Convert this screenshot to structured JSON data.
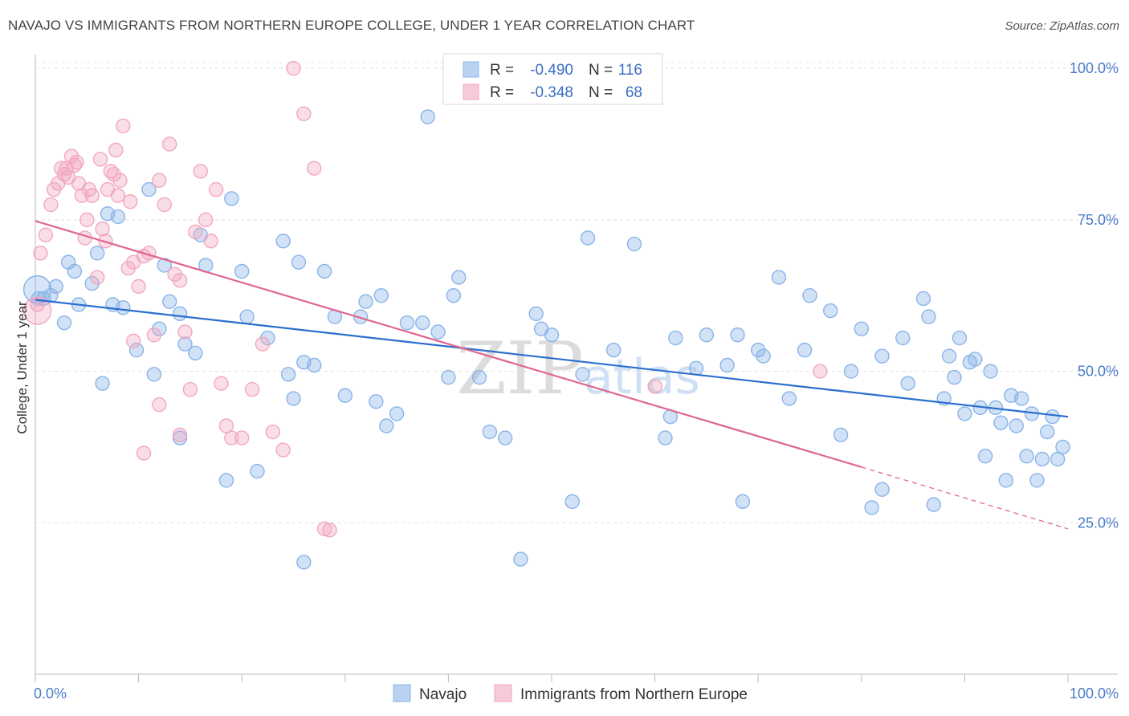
{
  "title": "NAVAJO VS IMMIGRANTS FROM NORTHERN EUROPE COLLEGE, UNDER 1 YEAR CORRELATION CHART",
  "source": "Source: ZipAtlas.com",
  "watermark": "ZIPatlas",
  "chart_data": {
    "type": "scatter",
    "xlabel": "",
    "ylabel": "College, Under 1 year",
    "xlim": [
      0,
      100
    ],
    "ylim": [
      0,
      102
    ],
    "x_tick_labels": [
      "0.0%",
      "100.0%"
    ],
    "y_ticks": [
      25,
      50,
      75,
      100
    ],
    "y_tick_labels": [
      "25.0%",
      "50.0%",
      "75.0%",
      "100.0%"
    ],
    "grid": true,
    "legend": {
      "placement": "top-center",
      "entries": [
        {
          "r_label": "R =",
          "r_value": "-0.490",
          "n_label": "N =",
          "n_value": "116"
        },
        {
          "r_label": "R =",
          "r_value": "-0.348",
          "n_label": "N =",
          "n_value": "68"
        }
      ]
    },
    "series": [
      {
        "name": "Navajo",
        "color": "#8ab4e8",
        "line_color": "#2b6fce",
        "trend": {
          "x": [
            0,
            100
          ],
          "y": [
            61.8,
            42.5
          ]
        },
        "points": [
          [
            0.3,
            62
          ],
          [
            0.8,
            62
          ],
          [
            1.5,
            62.5
          ],
          [
            2,
            64
          ],
          [
            2.8,
            58
          ],
          [
            3.2,
            68
          ],
          [
            3.8,
            66.5
          ],
          [
            4.2,
            61
          ],
          [
            5.5,
            64.5
          ],
          [
            6,
            69.5
          ],
          [
            6.5,
            48
          ],
          [
            7,
            76
          ],
          [
            7.5,
            61
          ],
          [
            8,
            75.5
          ],
          [
            8.5,
            60.5
          ],
          [
            9.8,
            53.5
          ],
          [
            11,
            80
          ],
          [
            11.5,
            49.5
          ],
          [
            12,
            57
          ],
          [
            12.5,
            67.5
          ],
          [
            13,
            61.5
          ],
          [
            14,
            59.5
          ],
          [
            14.5,
            54.5
          ],
          [
            15.5,
            53
          ],
          [
            16,
            72.5
          ],
          [
            16.5,
            67.5
          ],
          [
            14,
            39
          ],
          [
            18.5,
            32
          ],
          [
            19,
            78.5
          ],
          [
            20,
            66.5
          ],
          [
            20.5,
            59
          ],
          [
            21.5,
            33.5
          ],
          [
            22.5,
            55.5
          ],
          [
            24,
            71.5
          ],
          [
            24.5,
            49.5
          ],
          [
            25,
            45.5
          ],
          [
            25.5,
            68
          ],
          [
            26,
            51.5
          ],
          [
            27,
            51
          ],
          [
            28,
            66.5
          ],
          [
            29,
            59
          ],
          [
            30,
            46
          ],
          [
            31.5,
            59
          ],
          [
            32,
            61.5
          ],
          [
            33,
            45
          ],
          [
            33.5,
            62.5
          ],
          [
            26,
            18.5
          ],
          [
            34,
            41
          ],
          [
            35,
            43
          ],
          [
            36,
            58
          ],
          [
            37.5,
            58
          ],
          [
            38,
            92
          ],
          [
            39,
            56.5
          ],
          [
            40,
            49
          ],
          [
            41,
            65.5
          ],
          [
            40.5,
            62.5
          ],
          [
            43,
            49
          ],
          [
            44,
            40
          ],
          [
            45.5,
            39
          ],
          [
            47,
            19
          ],
          [
            48.5,
            59.5
          ],
          [
            49,
            57
          ],
          [
            50,
            56
          ],
          [
            52,
            28.5
          ],
          [
            53,
            49.5
          ],
          [
            53.5,
            72
          ],
          [
            56,
            53.5
          ],
          [
            58,
            71
          ],
          [
            61,
            39
          ],
          [
            61.5,
            42.5
          ],
          [
            62,
            55.5
          ],
          [
            64,
            50.5
          ],
          [
            65,
            56
          ],
          [
            67,
            51
          ],
          [
            68,
            56
          ],
          [
            68.5,
            28.5
          ],
          [
            70,
            53.5
          ],
          [
            70.5,
            52.5
          ],
          [
            72,
            65.5
          ],
          [
            73,
            45.5
          ],
          [
            74.5,
            53.5
          ],
          [
            75,
            62.5
          ],
          [
            77,
            60
          ],
          [
            78,
            39.5
          ],
          [
            79,
            50
          ],
          [
            80,
            57
          ],
          [
            81,
            27.5
          ],
          [
            82,
            30.5
          ],
          [
            82,
            52.5
          ],
          [
            84,
            55.5
          ],
          [
            84.5,
            48
          ],
          [
            86,
            62
          ],
          [
            86.5,
            59
          ],
          [
            87,
            28
          ],
          [
            88,
            45.5
          ],
          [
            88.5,
            52.5
          ],
          [
            89,
            49
          ],
          [
            89.5,
            55.5
          ],
          [
            90,
            43
          ],
          [
            90.5,
            51.5
          ],
          [
            91,
            52
          ],
          [
            91.5,
            44
          ],
          [
            92,
            36
          ],
          [
            92.5,
            50
          ],
          [
            93,
            44
          ],
          [
            93.5,
            41.5
          ],
          [
            94,
            32
          ],
          [
            94.5,
            46
          ],
          [
            95,
            41
          ],
          [
            95.5,
            45.5
          ],
          [
            96,
            36
          ],
          [
            96.5,
            43
          ],
          [
            97,
            32
          ],
          [
            97.5,
            35.5
          ],
          [
            98,
            40
          ],
          [
            98.5,
            42.5
          ],
          [
            99,
            35.5
          ],
          [
            99.5,
            37.5
          ]
        ]
      },
      {
        "name": "Immigrants from Northern Europe",
        "color": "#f2a7c0",
        "line_color": "#e0668f",
        "trend": {
          "x": [
            0,
            80
          ],
          "y": [
            74.8,
            34.2
          ]
        },
        "trend_dashed": {
          "x": [
            80,
            100
          ],
          "y": [
            34.2,
            24
          ]
        },
        "points": [
          [
            0.2,
            61
          ],
          [
            0.5,
            69.5
          ],
          [
            1,
            72.5
          ],
          [
            1.5,
            77.5
          ],
          [
            1.8,
            80
          ],
          [
            2.2,
            81
          ],
          [
            2.5,
            83.5
          ],
          [
            2.8,
            82.5
          ],
          [
            3,
            83.5
          ],
          [
            3.2,
            82
          ],
          [
            3.5,
            85.5
          ],
          [
            3.8,
            84
          ],
          [
            4,
            84.5
          ],
          [
            4.2,
            81
          ],
          [
            4.5,
            79
          ],
          [
            4.8,
            72
          ],
          [
            5,
            75
          ],
          [
            5.2,
            80
          ],
          [
            5.5,
            79
          ],
          [
            6,
            65.5
          ],
          [
            6.3,
            85
          ],
          [
            6.5,
            73.5
          ],
          [
            6.8,
            71.5
          ],
          [
            7,
            80
          ],
          [
            7.3,
            83
          ],
          [
            7.6,
            82.5
          ],
          [
            7.8,
            86.5
          ],
          [
            8,
            79
          ],
          [
            8.2,
            81.5
          ],
          [
            8.5,
            90.5
          ],
          [
            9,
            67
          ],
          [
            9.2,
            78
          ],
          [
            9.5,
            68
          ],
          [
            10,
            64
          ],
          [
            10.5,
            69
          ],
          [
            11,
            69.5
          ],
          [
            11.5,
            56
          ],
          [
            12,
            81.5
          ],
          [
            12.5,
            77.5
          ],
          [
            13,
            87.5
          ],
          [
            13.5,
            66
          ],
          [
            14,
            65
          ],
          [
            14.5,
            56.5
          ],
          [
            15,
            47
          ],
          [
            15.5,
            73
          ],
          [
            16,
            83
          ],
          [
            16.5,
            75
          ],
          [
            17,
            71.5
          ],
          [
            17.5,
            80
          ],
          [
            18,
            48
          ],
          [
            18.5,
            41
          ],
          [
            19,
            39
          ],
          [
            20,
            39
          ],
          [
            21,
            47
          ],
          [
            22,
            54.5
          ],
          [
            23,
            40
          ],
          [
            24,
            37
          ],
          [
            25,
            100
          ],
          [
            26,
            92.5
          ],
          [
            27,
            83.5
          ],
          [
            28,
            24
          ],
          [
            28.5,
            23.8
          ],
          [
            12,
            44.5
          ],
          [
            9.5,
            55
          ],
          [
            10.5,
            36.5
          ],
          [
            14,
            39.5
          ],
          [
            60,
            47.5
          ],
          [
            76,
            50
          ]
        ]
      }
    ]
  },
  "bottom_legend": [
    {
      "label": "Navajo",
      "color": "#8ab4e8"
    },
    {
      "label": "Immigrants from Northern Europe",
      "color": "#f2a7c0"
    }
  ]
}
